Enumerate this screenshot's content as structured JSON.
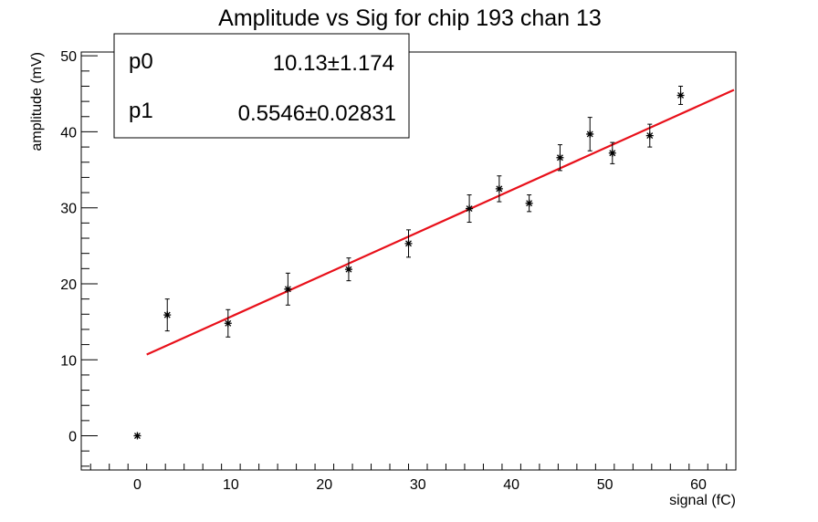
{
  "chart_data": {
    "type": "scatter",
    "title": "Amplitude vs Sig for chip 193 chan 13",
    "xlabel": "signal (fC)",
    "ylabel": "amplitude (mV)",
    "xlim": [
      -6,
      64
    ],
    "ylim": [
      -4.5,
      50.5
    ],
    "x_ticks": [
      0,
      10,
      20,
      30,
      40,
      50,
      60
    ],
    "y_ticks": [
      0,
      10,
      20,
      30,
      40,
      50
    ],
    "grid": false,
    "series": [
      {
        "points": [
          {
            "x": 0.0,
            "y": 0.0,
            "err": 0.0
          },
          {
            "x": 3.2,
            "y": 15.9,
            "err": 2.1
          },
          {
            "x": 9.7,
            "y": 14.8,
            "err": 1.8
          },
          {
            "x": 16.1,
            "y": 19.3,
            "err": 2.1
          },
          {
            "x": 22.6,
            "y": 21.9,
            "err": 1.5
          },
          {
            "x": 29.0,
            "y": 25.3,
            "err": 1.8
          },
          {
            "x": 35.5,
            "y": 29.9,
            "err": 1.8
          },
          {
            "x": 38.7,
            "y": 32.5,
            "err": 1.7
          },
          {
            "x": 41.9,
            "y": 30.6,
            "err": 1.1
          },
          {
            "x": 45.2,
            "y": 36.6,
            "err": 1.7
          },
          {
            "x": 48.4,
            "y": 39.7,
            "err": 2.2
          },
          {
            "x": 50.8,
            "y": 37.2,
            "err": 1.4
          },
          {
            "x": 54.8,
            "y": 39.5,
            "err": 1.5
          },
          {
            "x": 58.1,
            "y": 44.8,
            "err": 1.2
          }
        ]
      }
    ],
    "fit": {
      "type": "line",
      "color": "#e8101a",
      "x_range": [
        1.0,
        63.8
      ],
      "p0": 10.13,
      "p1": 0.5546
    },
    "stats_box": {
      "placement": "top-left",
      "rows": [
        {
          "name": "p0",
          "value": "10.13",
          "pm": "±",
          "error": "1.174"
        },
        {
          "name": "p1",
          "value": "0.5546",
          "pm": "±",
          "error": "0.02831"
        }
      ]
    }
  }
}
